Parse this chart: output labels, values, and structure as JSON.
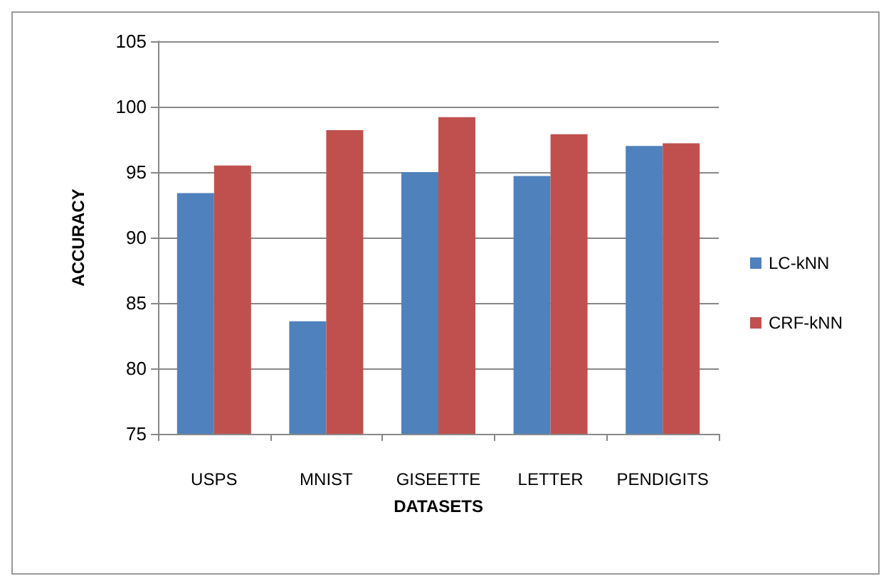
{
  "chart_data": {
    "type": "bar",
    "xlabel": "DATASETS",
    "ylabel": "ACCURACY",
    "categories": [
      "USPS",
      "MNIST",
      "GISEETTE",
      "LETTER",
      "PENDIGITS"
    ],
    "series": [
      {
        "name": "LC-kNN",
        "color": "#4f81bd",
        "values": [
          93.4,
          83.6,
          95.0,
          94.7,
          97.0
        ]
      },
      {
        "name": "CRF-kNN",
        "color": "#c0504d",
        "values": [
          95.5,
          98.2,
          99.2,
          97.9,
          97.2
        ]
      }
    ],
    "ylim": [
      75,
      105
    ],
    "yticks": [
      75,
      80,
      85,
      90,
      95,
      100,
      105
    ],
    "grid": "y",
    "legend": "right"
  }
}
